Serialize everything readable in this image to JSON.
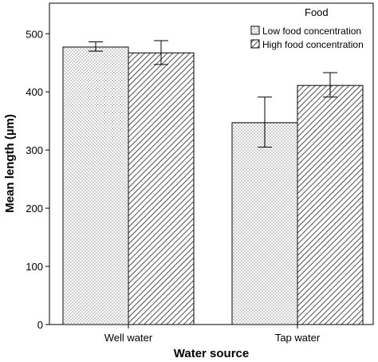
{
  "chart_data": {
    "type": "bar",
    "title": "",
    "xlabel": "Water source",
    "ylabel": "Mean length (µm)",
    "categories": [
      "Well water",
      "Tap water"
    ],
    "ylim": [
      0,
      520
    ],
    "yticks": [
      0,
      100,
      200,
      300,
      400,
      500
    ],
    "grid": false,
    "legend": {
      "title": "Food",
      "position": "top-right"
    },
    "series": [
      {
        "name": "Low food concentration",
        "pattern": "dotted",
        "values": [
          477,
          347
        ],
        "error_low": [
          470,
          305
        ],
        "error_high": [
          486,
          391
        ]
      },
      {
        "name": "High food concentration",
        "pattern": "diagonal-hatch",
        "values": [
          467,
          411
        ],
        "error_low": [
          447,
          391
        ],
        "error_high": [
          488,
          433
        ]
      }
    ]
  }
}
